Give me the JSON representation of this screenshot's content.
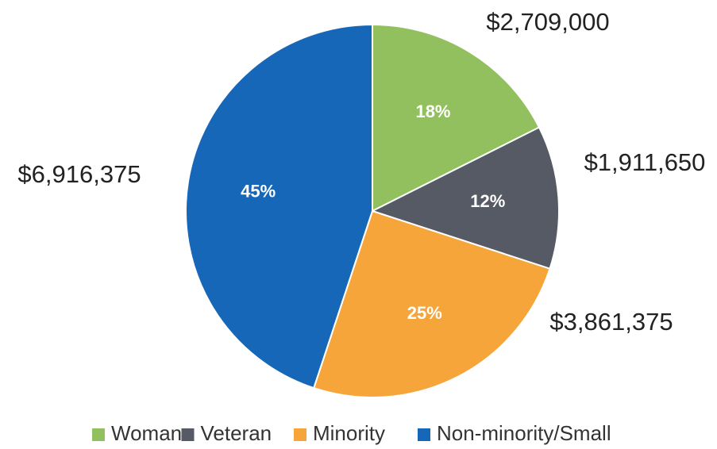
{
  "chart_data": {
    "type": "pie",
    "categories": [
      "Woman",
      "Veteran",
      "Minority",
      "Non-minority/Small"
    ],
    "values": [
      2709000,
      1911650,
      3861375,
      6916375
    ],
    "value_labels": [
      "$2,709,000",
      "$1,911,650",
      "$3,861,375",
      "$6,916,375"
    ],
    "percent_labels": [
      "18%",
      "12%",
      "25%",
      "45%"
    ],
    "colors": [
      "#92c05e",
      "#555a64",
      "#f5a53a",
      "#1767b9"
    ],
    "legend": "bottom"
  }
}
